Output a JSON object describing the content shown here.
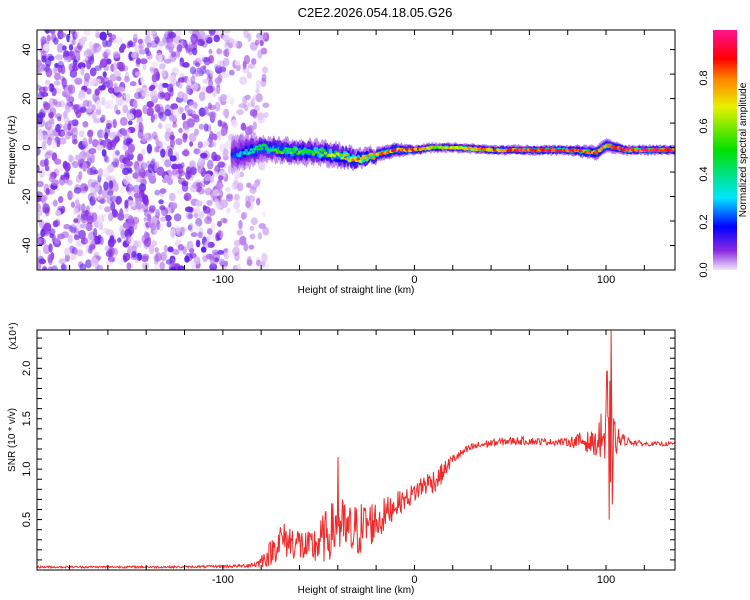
{
  "title": "C2E2.2026.054.18.05.G26",
  "chart_data": [
    {
      "type": "heatmap",
      "name": "spectrogram",
      "xlabel": "Height of straight line (km)",
      "ylabel": "Frequency (Hz)",
      "xlim": [
        -197,
        136
      ],
      "ylim": [
        -50,
        48
      ],
      "xticks": [
        -100,
        0,
        100
      ],
      "xtick_labels": [
        "-100",
        "0",
        "100"
      ],
      "xminor_step": 20,
      "yticks": [
        40,
        20,
        0,
        -20,
        -40
      ],
      "ytick_labels": [
        "40",
        "20",
        "0",
        "-20",
        "-40"
      ],
      "yminor_step": 10,
      "noise_region_km": [
        -197,
        -85
      ],
      "noise_amplitude_range": [
        0.0,
        0.12
      ],
      "ridge": {
        "x": [
          -95,
          -88,
          -80,
          -70,
          -60,
          -50,
          -40,
          -30,
          -20,
          -10,
          0,
          10,
          20,
          40,
          60,
          80,
          95,
          100,
          110,
          136
        ],
        "frequency": [
          -3,
          -2,
          0,
          -1,
          -2,
          -2,
          -3,
          -5,
          -3,
          -1,
          -1,
          0,
          0,
          -1,
          -1,
          -1,
          -2,
          1,
          -1,
          -1
        ],
        "amplitude": [
          0.15,
          0.3,
          0.45,
          0.5,
          0.5,
          0.55,
          0.6,
          0.75,
          0.75,
          0.85,
          0.85,
          0.65,
          0.7,
          0.8,
          0.9,
          0.95,
          0.85,
          0.7,
          0.95,
          0.95
        ],
        "spread_hz": [
          8,
          7,
          5,
          5,
          5,
          5,
          5,
          4,
          3,
          3,
          2,
          2,
          2,
          2,
          2,
          2,
          3,
          3,
          2,
          2
        ]
      },
      "colorbar": {
        "label": "Normalized spectral amplitude",
        "range": [
          0,
          1
        ],
        "ticks": [
          0.0,
          0.2,
          0.4,
          0.6,
          0.8
        ],
        "tick_labels": [
          "0.0",
          "0.2",
          "0.4",
          "0.6",
          "0.8"
        ],
        "stops": [
          {
            "v": 0.0,
            "color": "#f2e6fb"
          },
          {
            "v": 0.08,
            "color": "#8a2be2"
          },
          {
            "v": 0.18,
            "color": "#0000ff"
          },
          {
            "v": 0.3,
            "color": "#00e5ff"
          },
          {
            "v": 0.5,
            "color": "#00e000"
          },
          {
            "v": 0.68,
            "color": "#e8f000"
          },
          {
            "v": 0.8,
            "color": "#ff8000"
          },
          {
            "v": 0.88,
            "color": "#ff0000"
          },
          {
            "v": 1.0,
            "color": "#ff1493"
          }
        ]
      }
    },
    {
      "type": "line",
      "name": "snr",
      "xlabel": "Height of straight line (km)",
      "ylabel": "SNR (10 * v/v)",
      "scale_label": "(x10⁴)",
      "xlim": [
        -197,
        136
      ],
      "ylim": [
        0,
        2.38
      ],
      "xticks": [
        -100,
        0,
        100
      ],
      "xtick_labels": [
        "-100",
        "0",
        "100"
      ],
      "xminor_step": 20,
      "yticks": [
        0.5,
        1.0,
        1.5,
        2.0
      ],
      "ytick_labels": [
        "0.5",
        "1.0",
        "1.5",
        "2.0"
      ],
      "yminor_step": 0.1,
      "color": "#ee2a2a",
      "series": {
        "x": [
          -197,
          -120,
          -90,
          -82,
          -76,
          -70,
          -62,
          -55,
          -48,
          -40,
          -33,
          -25,
          -18,
          -10,
          -3,
          5,
          12,
          20,
          30,
          40,
          50,
          60,
          70,
          80,
          88,
          95,
          99,
          101,
          102,
          104,
          110,
          120,
          136
        ],
        "y": [
          0.03,
          0.03,
          0.04,
          0.06,
          0.15,
          0.3,
          0.28,
          0.2,
          0.3,
          0.45,
          0.35,
          0.45,
          0.5,
          0.65,
          0.72,
          0.85,
          0.9,
          1.1,
          1.22,
          1.26,
          1.28,
          1.28,
          1.27,
          1.27,
          1.28,
          1.25,
          1.3,
          1.1,
          1.2,
          1.3,
          1.28,
          1.25,
          1.25
        ],
        "noise": [
          0.01,
          0.01,
          0.015,
          0.04,
          0.12,
          0.18,
          0.18,
          0.18,
          0.25,
          0.3,
          0.3,
          0.25,
          0.2,
          0.12,
          0.1,
          0.12,
          0.12,
          0.05,
          0.04,
          0.04,
          0.04,
          0.04,
          0.03,
          0.04,
          0.1,
          0.12,
          0.35,
          0.6,
          0.7,
          0.2,
          0.04,
          0.02,
          0.02
        ]
      },
      "spikes": [
        {
          "x": 100.5,
          "y": 1.97
        },
        {
          "x": 101.5,
          "y": 0.5
        },
        {
          "x": 102.8,
          "y": 2.38
        },
        {
          "x": 103.3,
          "y": 0.65
        },
        {
          "x": -40,
          "y": 1.12
        },
        {
          "x": 97.5,
          "y": 1.55
        }
      ]
    }
  ]
}
